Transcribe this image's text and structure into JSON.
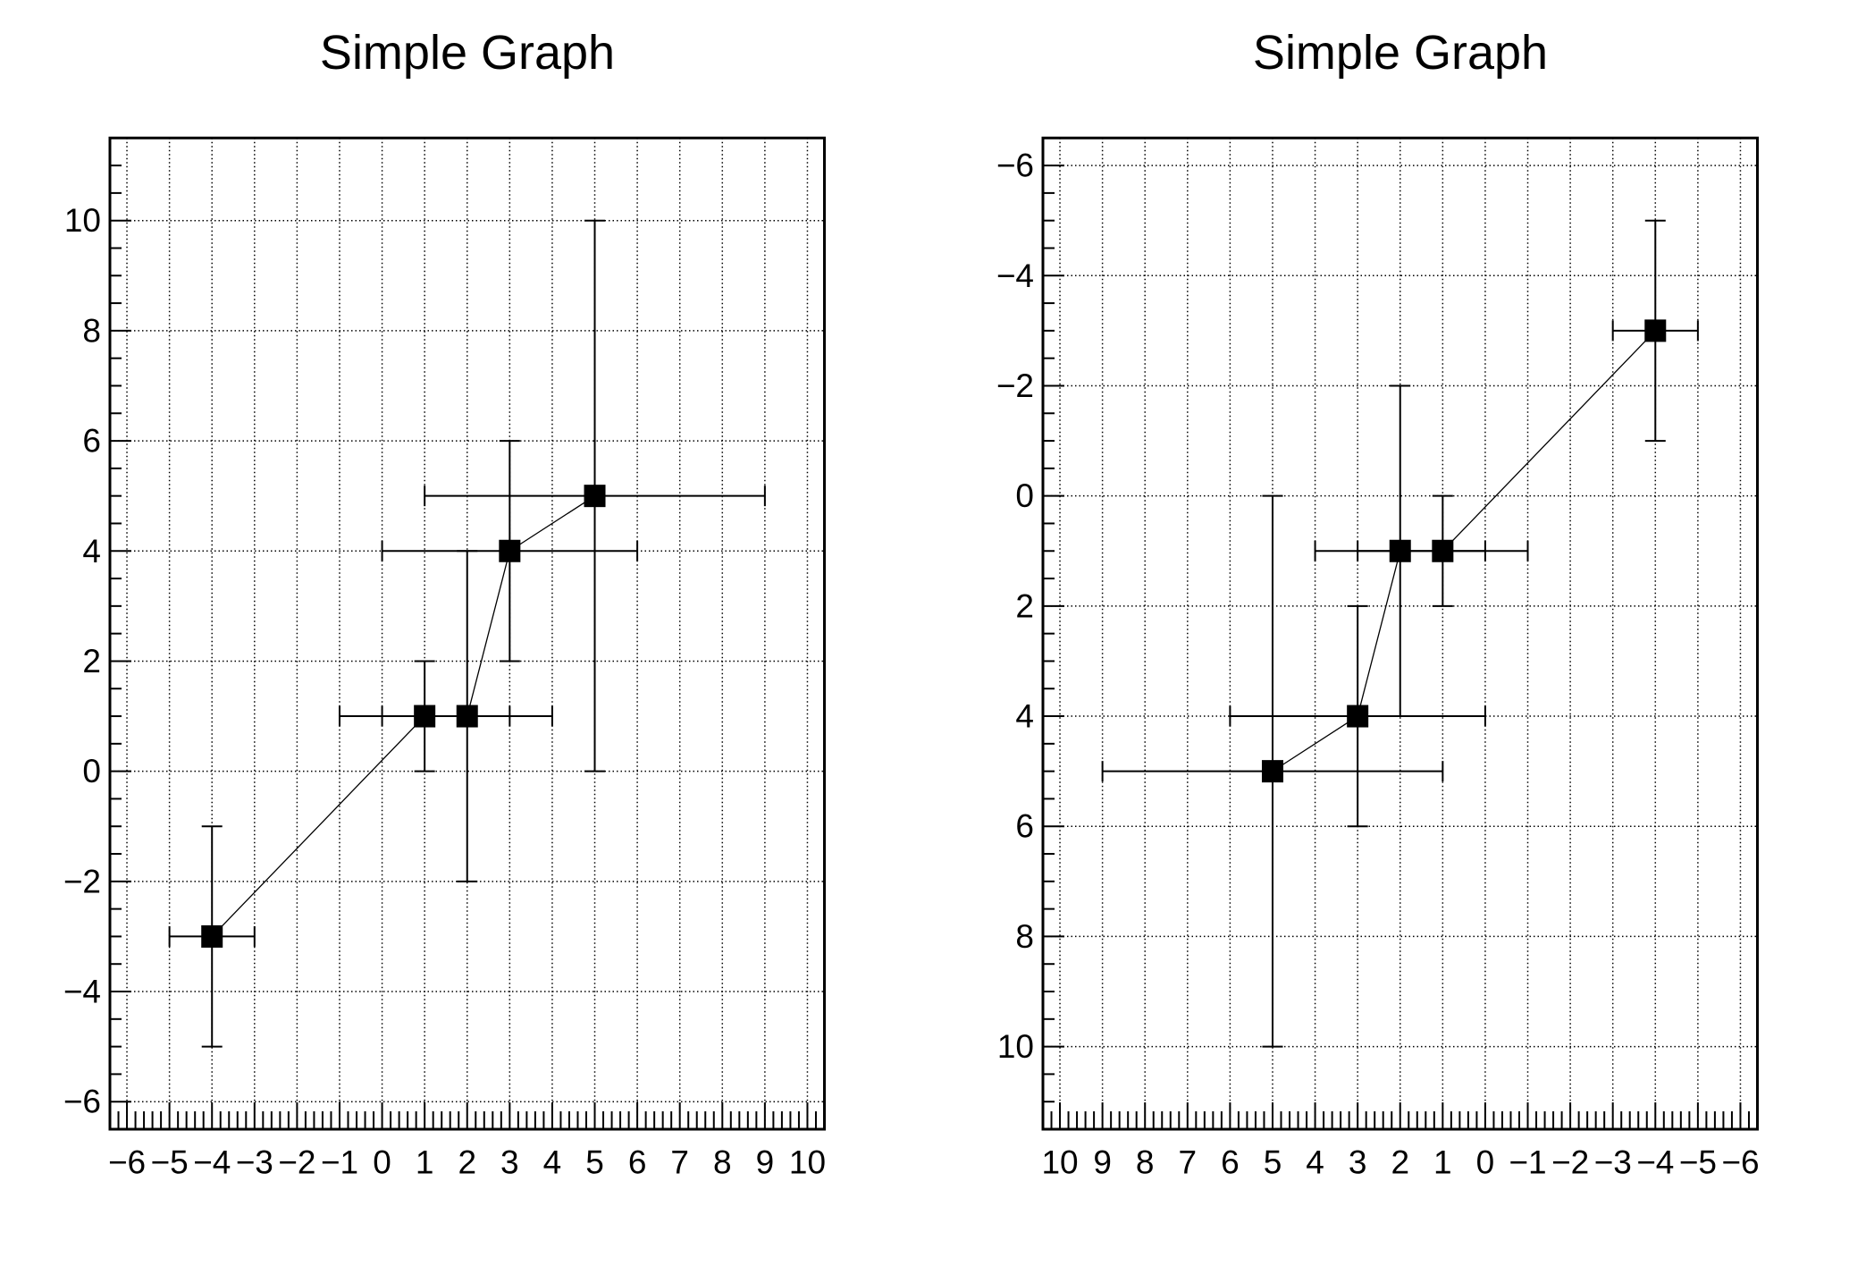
{
  "window": {
    "background": "#ffffff",
    "foreground": "#000000"
  },
  "chart_data": [
    {
      "type": "scatter",
      "title": "Simple Graph",
      "xlabel": "",
      "ylabel": "",
      "xlim": [
        -6.4,
        10.4
      ],
      "ylim": [
        -6.5,
        11.5
      ],
      "x_reversed": false,
      "y_reversed": false,
      "grid": true,
      "grid_line_style": "dotted",
      "marker": "filled-square",
      "marker_color": "#000000",
      "connect_line": true,
      "error_bars": true,
      "x_ticks": {
        "values": [
          -6,
          -5,
          -4,
          -3,
          -2,
          -1,
          0,
          1,
          2,
          3,
          4,
          5,
          6,
          7,
          8,
          9,
          10
        ],
        "labels": [
          "−6",
          "−5",
          "−4",
          "−3",
          "−2",
          "−1",
          "0",
          "1",
          "2",
          "3",
          "4",
          "5",
          "6",
          "7",
          "8",
          "9",
          "10"
        ],
        "minor_step": 0.2
      },
      "y_ticks": {
        "values": [
          -6,
          -4,
          -2,
          0,
          2,
          4,
          6,
          8,
          10
        ],
        "labels": [
          "−6",
          "−4",
          "−2",
          "0",
          "2",
          "4",
          "6",
          "8",
          "10"
        ],
        "minor_step": 0.5
      },
      "points": [
        {
          "x": -4,
          "y": -3,
          "ex": 1,
          "ey": 2
        },
        {
          "x": 1,
          "y": 1,
          "ex": 2,
          "ey": 1
        },
        {
          "x": 2,
          "y": 1,
          "ex": 2,
          "ey": 3
        },
        {
          "x": 3,
          "y": 4,
          "ex": 3,
          "ey": 2
        },
        {
          "x": 5,
          "y": 5,
          "ex": 4,
          "ey": 5
        }
      ]
    },
    {
      "type": "scatter",
      "title": "Simple Graph",
      "xlabel": "",
      "ylabel": "",
      "xlim": [
        -6.4,
        10.4
      ],
      "ylim": [
        -6.5,
        11.5
      ],
      "x_reversed": true,
      "y_reversed": true,
      "grid": true,
      "grid_line_style": "dotted",
      "marker": "filled-square",
      "marker_color": "#000000",
      "connect_line": true,
      "error_bars": true,
      "x_ticks": {
        "values": [
          -6,
          -5,
          -4,
          -3,
          -2,
          -1,
          0,
          1,
          2,
          3,
          4,
          5,
          6,
          7,
          8,
          9,
          10
        ],
        "labels": [
          "−6",
          "−5",
          "−4",
          "−3",
          "−2",
          "−1",
          "0",
          "1",
          "2",
          "3",
          "4",
          "5",
          "6",
          "7",
          "8",
          "9",
          "10"
        ],
        "minor_step": 0.2
      },
      "y_ticks": {
        "values": [
          -6,
          -4,
          -2,
          0,
          2,
          4,
          6,
          8,
          10
        ],
        "labels": [
          "−6",
          "−4",
          "−2",
          "0",
          "2",
          "4",
          "6",
          "8",
          "10"
        ],
        "minor_step": 0.5
      },
      "points": [
        {
          "x": -4,
          "y": -3,
          "ex": 1,
          "ey": 2
        },
        {
          "x": 1,
          "y": 1,
          "ex": 2,
          "ey": 1
        },
        {
          "x": 2,
          "y": 1,
          "ex": 2,
          "ey": 3
        },
        {
          "x": 3,
          "y": 4,
          "ex": 3,
          "ey": 2
        },
        {
          "x": 5,
          "y": 5,
          "ex": 4,
          "ey": 5
        }
      ]
    }
  ]
}
